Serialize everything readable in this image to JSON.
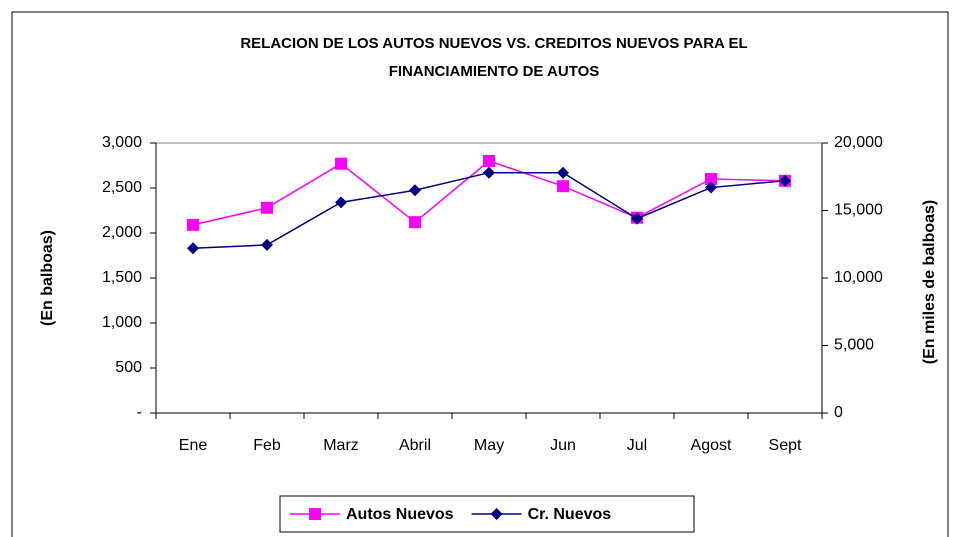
{
  "chart_data": {
    "type": "line",
    "title": [
      "RELACION DE LOS AUTOS NUEVOS VS. CREDITOS NUEVOS PARA EL",
      "FINANCIAMIENTO DE AUTOS"
    ],
    "y_label": "(En balboas)",
    "y2_label": "(En miles de balboas)",
    "categories": [
      "Ene",
      "Feb",
      "Marz",
      "Abril",
      "May",
      "Jun",
      "Jul",
      "Agost",
      "Sept"
    ],
    "series": [
      {
        "name": "Autos Nuevos",
        "color": "#ff00ff",
        "marker": "square",
        "values": [
          2090,
          2280,
          2770,
          2120,
          2800,
          2520,
          2170,
          2600,
          2580
        ]
      },
      {
        "name": "Cr. Nuevos",
        "color": "#000080",
        "marker": "diamond",
        "axis": "y2",
        "values": [
          12200,
          12450,
          15600,
          16500,
          17800,
          17800,
          14400,
          16700,
          17200
        ]
      }
    ],
    "ylim": [
      0,
      3000
    ],
    "yticks": [
      {
        "value": 0,
        "label": "-"
      },
      500,
      {
        "value": 1000,
        "label": "1,000"
      },
      {
        "value": 1500,
        "label": "1,500"
      },
      {
        "value": 2000,
        "label": "2,000"
      },
      {
        "value": 2500,
        "label": "2,500"
      },
      {
        "value": 3000,
        "label": "3,000"
      }
    ],
    "y2lim": [
      0,
      20000
    ],
    "y2ticks": [
      0,
      {
        "value": 5000,
        "label": "5,000"
      },
      {
        "value": 10000,
        "label": "10,000"
      },
      {
        "value": 15000,
        "label": "15,000"
      },
      {
        "value": 20000,
        "label": "20,000"
      }
    ],
    "legend": "bottom"
  }
}
